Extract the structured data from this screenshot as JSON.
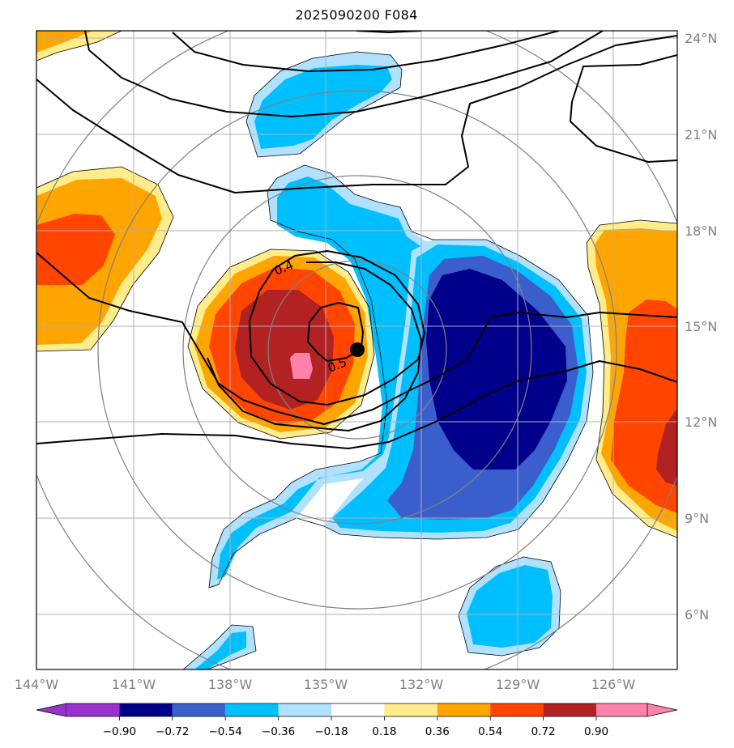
{
  "title": "2025090200 F084",
  "map": {
    "lon_labels": [
      "144°W",
      "141°W",
      "138°W",
      "135°W",
      "132°W",
      "129°W",
      "126°W"
    ],
    "lat_labels": [
      "24°N",
      "21°N",
      "18°N",
      "15°N",
      "12°N",
      "9°N",
      "6°N"
    ],
    "contour_labels": [
      "0.4",
      "0.5"
    ],
    "center_marker": "storm-center",
    "colors": {
      "c_m108": "#9932cc",
      "c_m090": "#00008b",
      "c_m072": "#3a5fcd",
      "c_m054": "#00bfff",
      "c_m036": "#b0e2ff",
      "c_p018": "#ffec8b",
      "c_p036": "#ffa500",
      "c_p054": "#ff4500",
      "c_p072": "#b22222",
      "c_p090": "#ff82ab",
      "gridline": "#b0b0b0",
      "range_ring": "#808080",
      "contour": "#000000"
    }
  },
  "colorbar": {
    "tick_labels": [
      "−0.90",
      "−0.72",
      "−0.54",
      "−0.36",
      "−0.18",
      "0.18",
      "0.36",
      "0.54",
      "0.72",
      "0.90"
    ],
    "colors": [
      "#9932cc",
      "#00008b",
      "#3a5fcd",
      "#00bfff",
      "#b0e2ff",
      "#ffffff",
      "#ffec8b",
      "#ffa500",
      "#ff4500",
      "#b22222",
      "#ff82ab"
    ]
  }
}
